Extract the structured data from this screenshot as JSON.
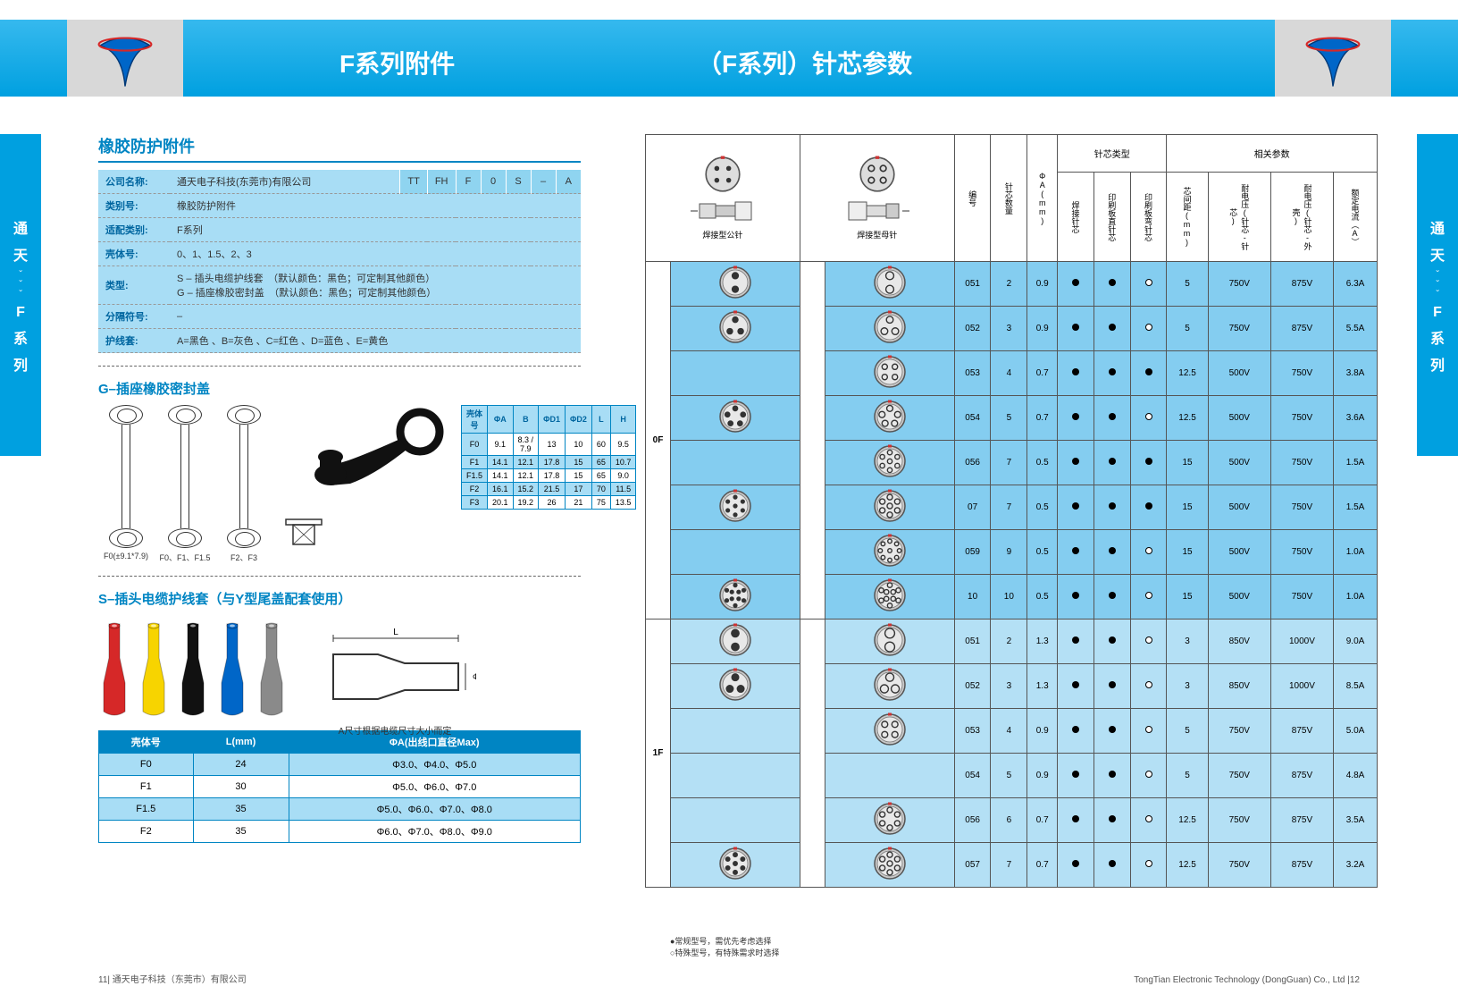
{
  "banner": {
    "title_left": "F系列附件",
    "title_right": "（F系列）针芯参数"
  },
  "side_tab": {
    "l1": "通",
    "l2": "天",
    "l3": "F",
    "l4": "系",
    "l5": "列"
  },
  "sec1_title": "橡胶防护附件",
  "spec_rows": [
    {
      "label": "公司名称:",
      "value": "通天电子科技(东莞市)有限公司",
      "codes": [
        "TT",
        "FH",
        "F",
        "0",
        "S",
        "–",
        "A"
      ]
    },
    {
      "label": "类别号:",
      "value": "橡胶防护附件"
    },
    {
      "label": "适配类别:",
      "value": "F系列"
    },
    {
      "label": "壳体号:",
      "value": "0、1、1.5、2、3"
    },
    {
      "label": "类型:",
      "value": "S – 插头电缆护线套　（默认颜色：黑色；可定制其他颜色）\nG – 插座橡胶密封盖　（默认颜色：黑色；可定制其他颜色）"
    },
    {
      "label": "分隔符号:",
      "value": "–"
    },
    {
      "label": "护线套:",
      "value": "A=黑色 、B=灰色 、C=红色 、D=蓝色 、E=黄色"
    }
  ],
  "sec2_title": "G–插座橡胶密封盖",
  "diag_labels": [
    "F0(±9.1*7.9)",
    "F0、F1、F1.5",
    "F2、F3"
  ],
  "gcap_table": {
    "headers": [
      "壳体号",
      "ΦA",
      "B",
      "ΦD1",
      "ΦD2",
      "L",
      "H"
    ],
    "rows": [
      [
        "F0",
        "9.1",
        "8.3 / 7.9",
        "13",
        "10",
        "60",
        "9.5"
      ],
      [
        "F1",
        "14.1",
        "12.1",
        "17.8",
        "15",
        "65",
        "10.7"
      ],
      [
        "F1.5",
        "14.1",
        "12.1",
        "17.8",
        "15",
        "65",
        "9.0"
      ],
      [
        "F2",
        "16.1",
        "15.2",
        "21.5",
        "17",
        "70",
        "11.5"
      ],
      [
        "F3",
        "20.1",
        "19.2",
        "26",
        "21",
        "75",
        "13.5"
      ]
    ]
  },
  "sec3_title": "S–插头电缆护线套（与Y型尾盖配套使用）",
  "sleeve_colors": [
    "#d62828",
    "#f7d400",
    "#111111",
    "#0066c8",
    "#8a8a8a"
  ],
  "sleeve_note": "A尺寸根据电缆尺寸大小而定",
  "stable": {
    "headers": [
      "壳体号",
      "L(mm)",
      "ΦA(出线口直径Max)"
    ],
    "rows": [
      [
        "F0",
        "24",
        "Φ3.0、Φ4.0、Φ5.0"
      ],
      [
        "F1",
        "30",
        "Φ5.0、Φ6.0、Φ7.0"
      ],
      [
        "F1.5",
        "35",
        "Φ5.0、Φ6.0、Φ7.0、Φ8.0"
      ],
      [
        "F2",
        "35",
        "Φ6.0、Φ7.0、Φ8.0、Φ9.0"
      ]
    ]
  },
  "param_headers_top": [
    "针芯类型",
    "相关参数"
  ],
  "param_headers": [
    "编号",
    "针芯数量",
    "ΦA(mm)",
    "焊接针芯",
    "印刷板直针芯",
    "印刷板弯针芯",
    "芯间距(mm)",
    "耐电压(针芯-针芯)",
    "耐电压(针芯-外壳)",
    "额定电流（A）"
  ],
  "hdr": {
    "male_label": "焊接型公针",
    "female_label": "焊接型母针"
  },
  "param_groups": [
    {
      "tag": "0F",
      "rows": [
        {
          "n": "051",
          "pins": 2,
          "d": "0.9",
          "w": 1,
          "p": 1,
          "b": 0,
          "r": "5",
          "v1": "750V",
          "v2": "875V",
          "a": "6.3A",
          "male": [
            [
              0.5,
              0.3,
              0.09
            ],
            [
              0.5,
              0.7,
              0.09
            ]
          ],
          "female": null
        },
        {
          "n": "052",
          "pins": 3,
          "d": "0.9",
          "w": 1,
          "p": 1,
          "b": 0,
          "r": "5",
          "v1": "750V",
          "v2": "875V",
          "a": "5.5A",
          "male": [
            [
              0.5,
              0.28,
              0.08
            ],
            [
              0.34,
              0.62,
              0.08
            ],
            [
              0.66,
              0.62,
              0.08
            ]
          ],
          "female": [
            [
              0.5,
              0.28,
              0.1
            ],
            [
              0.34,
              0.62,
              0.1
            ],
            [
              0.66,
              0.62,
              0.1
            ]
          ]
        },
        {
          "n": "053",
          "pins": 4,
          "d": "0.7",
          "w": 1,
          "p": 1,
          "b": 1,
          "r": "12.5",
          "v1": "500V",
          "v2": "750V",
          "a": "3.8A",
          "male": null,
          "female": [
            [
              0.35,
              0.35,
              0.08
            ],
            [
              0.65,
              0.35,
              0.08
            ],
            [
              0.35,
              0.65,
              0.08
            ],
            [
              0.65,
              0.65,
              0.08
            ]
          ]
        },
        {
          "n": "054",
          "pins": 5,
          "d": "0.7",
          "w": 1,
          "p": 1,
          "b": 0,
          "r": "12.5",
          "v1": "500V",
          "v2": "750V",
          "a": "3.6A",
          "male": [
            [
              0.5,
              0.26,
              0.07
            ],
            [
              0.27,
              0.44,
              0.07
            ],
            [
              0.73,
              0.44,
              0.07
            ],
            [
              0.36,
              0.7,
              0.07
            ],
            [
              0.64,
              0.7,
              0.07
            ]
          ],
          "female": [
            [
              0.5,
              0.26,
              0.09
            ],
            [
              0.27,
              0.44,
              0.09
            ],
            [
              0.73,
              0.44,
              0.09
            ],
            [
              0.36,
              0.7,
              0.09
            ],
            [
              0.64,
              0.7,
              0.09
            ]
          ]
        },
        {
          "n": "056",
          "pins": 7,
          "d": "0.5",
          "w": 1,
          "p": 1,
          "b": 1,
          "r": "15",
          "v1": "500V",
          "v2": "750V",
          "a": "1.5A",
          "male": null,
          "female": [
            [
              0.5,
              0.5,
              0.07
            ],
            [
              0.5,
              0.24,
              0.07
            ],
            [
              0.72,
              0.37,
              0.07
            ],
            [
              0.72,
              0.63,
              0.07
            ],
            [
              0.5,
              0.76,
              0.07
            ],
            [
              0.28,
              0.63,
              0.07
            ],
            [
              0.28,
              0.37,
              0.07
            ]
          ]
        },
        {
          "n": "07",
          "pins": 7,
          "d": "0.5",
          "w": 1,
          "p": 1,
          "b": 1,
          "r": "15",
          "v1": "500V",
          "v2": "750V",
          "a": "1.5A",
          "male": [
            [
              0.5,
              0.5,
              0.05
            ],
            [
              0.5,
              0.24,
              0.05
            ],
            [
              0.72,
              0.37,
              0.05
            ],
            [
              0.72,
              0.63,
              0.05
            ],
            [
              0.5,
              0.76,
              0.05
            ],
            [
              0.28,
              0.63,
              0.05
            ],
            [
              0.28,
              0.37,
              0.05
            ]
          ],
          "female": [
            [
              0.5,
              0.5,
              0.08
            ],
            [
              0.5,
              0.24,
              0.08
            ],
            [
              0.72,
              0.37,
              0.08
            ],
            [
              0.72,
              0.63,
              0.08
            ],
            [
              0.5,
              0.76,
              0.08
            ],
            [
              0.28,
              0.63,
              0.08
            ],
            [
              0.28,
              0.37,
              0.08
            ]
          ]
        },
        {
          "n": "059",
          "pins": 9,
          "d": "0.5",
          "w": 1,
          "p": 1,
          "b": 0,
          "r": "15",
          "v1": "500V",
          "v2": "750V",
          "a": "1.0A",
          "male": null,
          "female": [
            [
              0.5,
              0.5,
              0.06
            ],
            [
              0.5,
              0.22,
              0.06
            ],
            [
              0.7,
              0.3,
              0.06
            ],
            [
              0.78,
              0.5,
              0.06
            ],
            [
              0.7,
              0.7,
              0.06
            ],
            [
              0.5,
              0.78,
              0.06
            ],
            [
              0.3,
              0.7,
              0.06
            ],
            [
              0.22,
              0.5,
              0.06
            ],
            [
              0.3,
              0.3,
              0.06
            ]
          ]
        },
        {
          "n": "10",
          "pins": 10,
          "d": "0.5",
          "w": 1,
          "p": 1,
          "b": 0,
          "r": "15",
          "v1": "500V",
          "v2": "750V",
          "a": "1.0A",
          "male": [
            [
              0.4,
              0.4,
              0.05
            ],
            [
              0.6,
              0.4,
              0.05
            ],
            [
              0.4,
              0.6,
              0.05
            ],
            [
              0.6,
              0.6,
              0.05
            ],
            [
              0.5,
              0.2,
              0.05
            ],
            [
              0.75,
              0.35,
              0.05
            ],
            [
              0.75,
              0.65,
              0.05
            ],
            [
              0.5,
              0.8,
              0.05
            ],
            [
              0.25,
              0.65,
              0.05
            ],
            [
              0.25,
              0.35,
              0.05
            ]
          ],
          "female": [
            [
              0.4,
              0.4,
              0.07
            ],
            [
              0.6,
              0.4,
              0.07
            ],
            [
              0.4,
              0.6,
              0.07
            ],
            [
              0.6,
              0.6,
              0.07
            ],
            [
              0.5,
              0.2,
              0.07
            ],
            [
              0.75,
              0.35,
              0.07
            ],
            [
              0.75,
              0.65,
              0.07
            ],
            [
              0.5,
              0.8,
              0.07
            ],
            [
              0.25,
              0.65,
              0.07
            ],
            [
              0.25,
              0.35,
              0.07
            ]
          ]
        }
      ]
    },
    {
      "tag": "1F",
      "rows": [
        {
          "n": "051",
          "pins": 2,
          "d": "1.3",
          "w": 1,
          "p": 1,
          "b": 0,
          "r": "3",
          "v1": "850V",
          "v2": "1000V",
          "a": "9.0A",
          "male": [
            [
              0.5,
              0.3,
              0.11
            ],
            [
              0.5,
              0.7,
              0.11
            ]
          ],
          "female": null
        },
        {
          "n": "052",
          "pins": 3,
          "d": "1.3",
          "w": 1,
          "p": 1,
          "b": 0,
          "r": "3",
          "v1": "850V",
          "v2": "1000V",
          "a": "8.5A",
          "male": [
            [
              0.5,
              0.28,
              0.1
            ],
            [
              0.34,
              0.62,
              0.1
            ],
            [
              0.66,
              0.62,
              0.1
            ]
          ],
          "female": [
            [
              0.5,
              0.28,
              0.12
            ],
            [
              0.34,
              0.62,
              0.12
            ],
            [
              0.66,
              0.62,
              0.12
            ]
          ]
        },
        {
          "n": "053",
          "pins": 4,
          "d": "0.9",
          "w": 1,
          "p": 1,
          "b": 0,
          "r": "5",
          "v1": "750V",
          "v2": "875V",
          "a": "5.0A",
          "male": null,
          "female": [
            [
              0.35,
              0.35,
              0.09
            ],
            [
              0.65,
              0.35,
              0.09
            ],
            [
              0.35,
              0.65,
              0.09
            ],
            [
              0.65,
              0.65,
              0.09
            ]
          ]
        },
        {
          "n": "054",
          "pins": 5,
          "d": "0.9",
          "w": 1,
          "p": 1,
          "b": 0,
          "r": "5",
          "v1": "750V",
          "v2": "875V",
          "a": "4.8A",
          "male": null,
          "female": null
        },
        {
          "n": "056",
          "pins": 6,
          "d": "0.7",
          "w": 1,
          "p": 1,
          "b": 0,
          "r": "12.5",
          "v1": "750V",
          "v2": "875V",
          "a": "3.5A",
          "male": null,
          "female": [
            [
              0.5,
              0.24,
              0.08
            ],
            [
              0.72,
              0.37,
              0.08
            ],
            [
              0.72,
              0.63,
              0.08
            ],
            [
              0.5,
              0.76,
              0.08
            ],
            [
              0.28,
              0.63,
              0.08
            ],
            [
              0.28,
              0.37,
              0.08
            ]
          ]
        },
        {
          "n": "057",
          "pins": 7,
          "d": "0.7",
          "w": 1,
          "p": 1,
          "b": 0,
          "r": "12.5",
          "v1": "750V",
          "v2": "875V",
          "a": "3.2A",
          "male": [
            [
              0.5,
              0.5,
              0.06
            ],
            [
              0.5,
              0.24,
              0.06
            ],
            [
              0.72,
              0.37,
              0.06
            ],
            [
              0.72,
              0.63,
              0.06
            ],
            [
              0.5,
              0.76,
              0.06
            ],
            [
              0.28,
              0.63,
              0.06
            ],
            [
              0.28,
              0.37,
              0.06
            ]
          ],
          "female": [
            [
              0.5,
              0.5,
              0.08
            ],
            [
              0.5,
              0.24,
              0.08
            ],
            [
              0.72,
              0.37,
              0.08
            ],
            [
              0.72,
              0.63,
              0.08
            ],
            [
              0.5,
              0.76,
              0.08
            ],
            [
              0.28,
              0.63,
              0.08
            ],
            [
              0.28,
              0.37,
              0.08
            ]
          ]
        }
      ]
    }
  ],
  "legend": {
    "l1": "●常规型号，需优先考虑选择",
    "l2": "○特殊型号，有特殊需求时选择"
  },
  "footer": {
    "l": "11| 通天电子科技（东莞市）有限公司",
    "r": "TongTian Electronic Technology (DongGuan) Co., Ltd |12"
  },
  "colors": {
    "accent": "#00a0e0",
    "tab_light": "#a8ddf5",
    "row_a": "#84cdf0",
    "row_b": "#b4e0f5"
  }
}
